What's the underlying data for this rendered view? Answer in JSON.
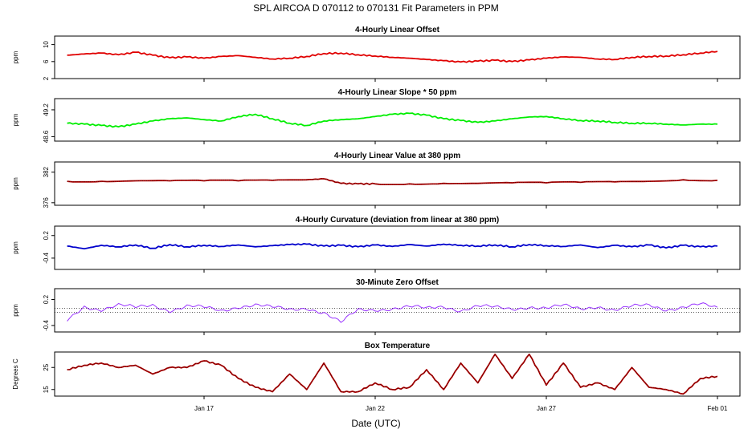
{
  "title": "SPL   AIRCOA D   070112 to 070131   Fit Parameters in PPM",
  "xlabel": "Date (UTC)",
  "x_ticks": [
    "Jan 17",
    "Jan 22",
    "Jan 27",
    "Feb 01"
  ],
  "chart_data": [
    {
      "type": "line",
      "title": "4-Hourly Linear Offset",
      "ylabel": "ppm",
      "yticks": [
        "2",
        "6",
        "10"
      ],
      "ylim": [
        2,
        12
      ],
      "color": "#e00000",
      "x_day_start": 13.0,
      "x_day_end": 32.0,
      "series": [
        {
          "x_day": [
            13.0,
            13.5,
            14.0,
            14.5,
            15.0,
            15.5,
            16.0,
            16.5,
            17.0,
            17.5,
            18.0,
            18.5,
            19.0,
            19.5,
            20.0,
            20.5,
            21.0,
            21.5,
            22.0,
            22.5,
            23.0,
            23.5,
            24.0,
            24.5,
            25.0,
            25.5,
            26.0,
            26.5,
            27.0,
            27.5,
            28.0,
            28.5,
            29.0,
            29.5,
            30.0,
            30.5,
            31.0,
            31.5,
            32.0
          ],
          "values": [
            7.5,
            7.8,
            8.0,
            7.6,
            8.2,
            7.5,
            6.9,
            7.1,
            6.8,
            7.2,
            7.4,
            7.0,
            6.6,
            6.8,
            7.2,
            7.9,
            8.0,
            7.6,
            7.3,
            7.0,
            6.8,
            6.5,
            6.2,
            5.9,
            6.1,
            6.3,
            6.0,
            6.4,
            6.8,
            7.1,
            7.0,
            6.6,
            6.5,
            7.0,
            7.2,
            7.3,
            7.6,
            8.0,
            8.4
          ]
        }
      ]
    },
    {
      "type": "line",
      "title": "4-Hourly Linear Slope * 50 ppm",
      "ylabel": "ppm",
      "yticks": [
        "48.6",
        "49.2"
      ],
      "ylim": [
        48.5,
        49.45
      ],
      "color": "#00ee00",
      "x_day_start": 13.0,
      "x_day_end": 32.0,
      "series": [
        {
          "x_day": [
            13.0,
            13.5,
            14.0,
            14.5,
            15.0,
            15.5,
            16.0,
            16.5,
            17.0,
            17.5,
            18.0,
            18.5,
            19.0,
            19.5,
            20.0,
            20.5,
            21.0,
            21.5,
            22.0,
            22.5,
            23.0,
            23.5,
            24.0,
            24.5,
            25.0,
            25.5,
            26.0,
            26.5,
            27.0,
            27.5,
            28.0,
            28.5,
            29.0,
            29.5,
            30.0,
            30.5,
            31.0,
            31.5,
            32.0
          ],
          "values": [
            48.9,
            48.88,
            48.85,
            48.82,
            48.88,
            48.95,
            49.0,
            49.02,
            48.98,
            48.95,
            49.05,
            49.1,
            49.0,
            48.9,
            48.85,
            48.95,
            48.98,
            49.0,
            49.05,
            49.1,
            49.12,
            49.08,
            49.0,
            48.96,
            48.92,
            48.95,
            49.0,
            49.04,
            49.05,
            49.0,
            48.96,
            48.95,
            48.92,
            48.9,
            48.9,
            48.88,
            48.86,
            48.88,
            48.88
          ]
        }
      ]
    },
    {
      "type": "line",
      "title": "4-Hourly Linear Value at 380 ppm",
      "ylabel": "ppm",
      "yticks": [
        "376",
        "382"
      ],
      "ylim": [
        375.5,
        384
      ],
      "color": "#b00000",
      "x_day_start": 13.0,
      "x_day_end": 32.0,
      "series": [
        {
          "x_day": [
            13.0,
            14.0,
            15.0,
            16.0,
            17.0,
            18.0,
            19.0,
            20.0,
            20.5,
            21.0,
            21.5,
            22.0,
            23.0,
            24.0,
            25.0,
            26.0,
            27.0,
            28.0,
            29.0,
            30.0,
            31.0,
            32.0
          ],
          "values": [
            380.2,
            380.2,
            380.3,
            380.3,
            380.3,
            380.3,
            380.4,
            380.5,
            380.7,
            379.8,
            379.7,
            379.7,
            379.7,
            379.8,
            379.8,
            379.9,
            379.9,
            380.0,
            380.1,
            380.2,
            380.5,
            380.4
          ]
        }
      ]
    },
    {
      "type": "line",
      "title": "4-Hourly Curvature (deviation from linear at 380 ppm)",
      "ylabel": "ppm",
      "yticks": [
        "-0.4",
        "0.2"
      ],
      "ylim": [
        -0.7,
        0.45
      ],
      "color": "#0000cc",
      "x_day_start": 13.0,
      "x_day_end": 32.0,
      "series": [
        {
          "x_day": [
            13.0,
            13.5,
            14.0,
            14.5,
            15.0,
            15.5,
            16.0,
            16.5,
            17.0,
            17.5,
            18.0,
            18.5,
            19.0,
            19.5,
            20.0,
            20.5,
            21.0,
            21.5,
            22.0,
            22.5,
            23.0,
            23.5,
            24.0,
            24.5,
            25.0,
            25.5,
            26.0,
            26.5,
            27.0,
            27.5,
            28.0,
            28.5,
            29.0,
            29.5,
            30.0,
            30.5,
            31.0,
            31.5,
            32.0
          ],
          "values": [
            -0.08,
            -0.15,
            -0.06,
            -0.1,
            -0.05,
            -0.14,
            -0.04,
            -0.1,
            -0.06,
            -0.09,
            -0.05,
            -0.1,
            -0.07,
            -0.04,
            -0.03,
            -0.08,
            -0.06,
            -0.1,
            -0.05,
            -0.09,
            -0.04,
            -0.08,
            -0.03,
            -0.06,
            -0.08,
            -0.05,
            -0.1,
            -0.04,
            -0.07,
            -0.09,
            -0.05,
            -0.12,
            -0.06,
            -0.1,
            -0.05,
            -0.13,
            -0.06,
            -0.1,
            -0.08
          ]
        }
      ]
    },
    {
      "type": "line",
      "title": "30-Minute Zero Offset",
      "ylabel": "ppm",
      "yticks": [
        "-0.4",
        "0.2"
      ],
      "ylim": [
        -0.55,
        0.45
      ],
      "color": "#9933ff",
      "x_day_start": 13.0,
      "x_day_end": 32.0,
      "series": [
        {
          "x_day": [
            13.0,
            13.5,
            14.0,
            14.5,
            15.0,
            15.5,
            16.0,
            16.5,
            17.0,
            17.5,
            18.0,
            18.5,
            19.0,
            19.5,
            20.0,
            20.5,
            21.0,
            21.5,
            22.0,
            22.5,
            23.0,
            23.5,
            24.0,
            24.5,
            25.0,
            25.5,
            26.0,
            26.5,
            27.0,
            27.5,
            28.0,
            28.5,
            29.0,
            29.5,
            30.0,
            30.5,
            31.0,
            31.5,
            32.0
          ],
          "values": [
            -0.3,
            0.05,
            -0.02,
            0.06,
            0.0,
            0.08,
            -0.04,
            0.04,
            0.0,
            -0.06,
            0.05,
            0.08,
            0.0,
            -0.04,
            0.02,
            -0.1,
            -0.35,
            -0.05,
            -0.02,
            0.0,
            0.02,
            -0.02,
            0.05,
            -0.04,
            0.04,
            0.0,
            -0.02,
            0.05,
            0.0,
            0.04,
            -0.02,
            0.06,
            -0.04,
            0.02,
            0.06,
            -0.02,
            0.04,
            0.08,
            -0.02
          ]
        }
      ],
      "reference_lines": [
        0.0,
        -0.1
      ]
    },
    {
      "type": "line",
      "title": "Box Temperature",
      "ylabel": "Degrees C",
      "yticks": [
        "15",
        "25"
      ],
      "ylim": [
        12,
        32
      ],
      "color": "#b00000",
      "x_day_start": 13.0,
      "x_day_end": 32.0,
      "series": [
        {
          "x_day": [
            13.0,
            13.5,
            14.0,
            14.5,
            15.0,
            15.5,
            16.0,
            16.5,
            17.0,
            17.5,
            18.0,
            18.5,
            19.0,
            19.5,
            20.0,
            20.5,
            21.0,
            21.5,
            22.0,
            22.5,
            23.0,
            23.5,
            24.0,
            24.5,
            25.0,
            25.5,
            26.0,
            26.5,
            27.0,
            27.5,
            28.0,
            28.5,
            29.0,
            29.5,
            30.0,
            30.5,
            31.0,
            31.5,
            32.0
          ],
          "values": [
            24,
            26,
            27,
            25,
            26,
            22,
            25,
            25,
            28,
            26,
            20,
            16,
            14,
            22,
            15,
            27,
            14,
            14,
            18,
            15,
            16,
            24,
            15,
            27,
            18,
            31,
            20,
            31,
            17,
            27,
            16,
            18,
            15,
            25,
            16,
            15,
            13,
            20,
            21
          ]
        }
      ]
    }
  ]
}
